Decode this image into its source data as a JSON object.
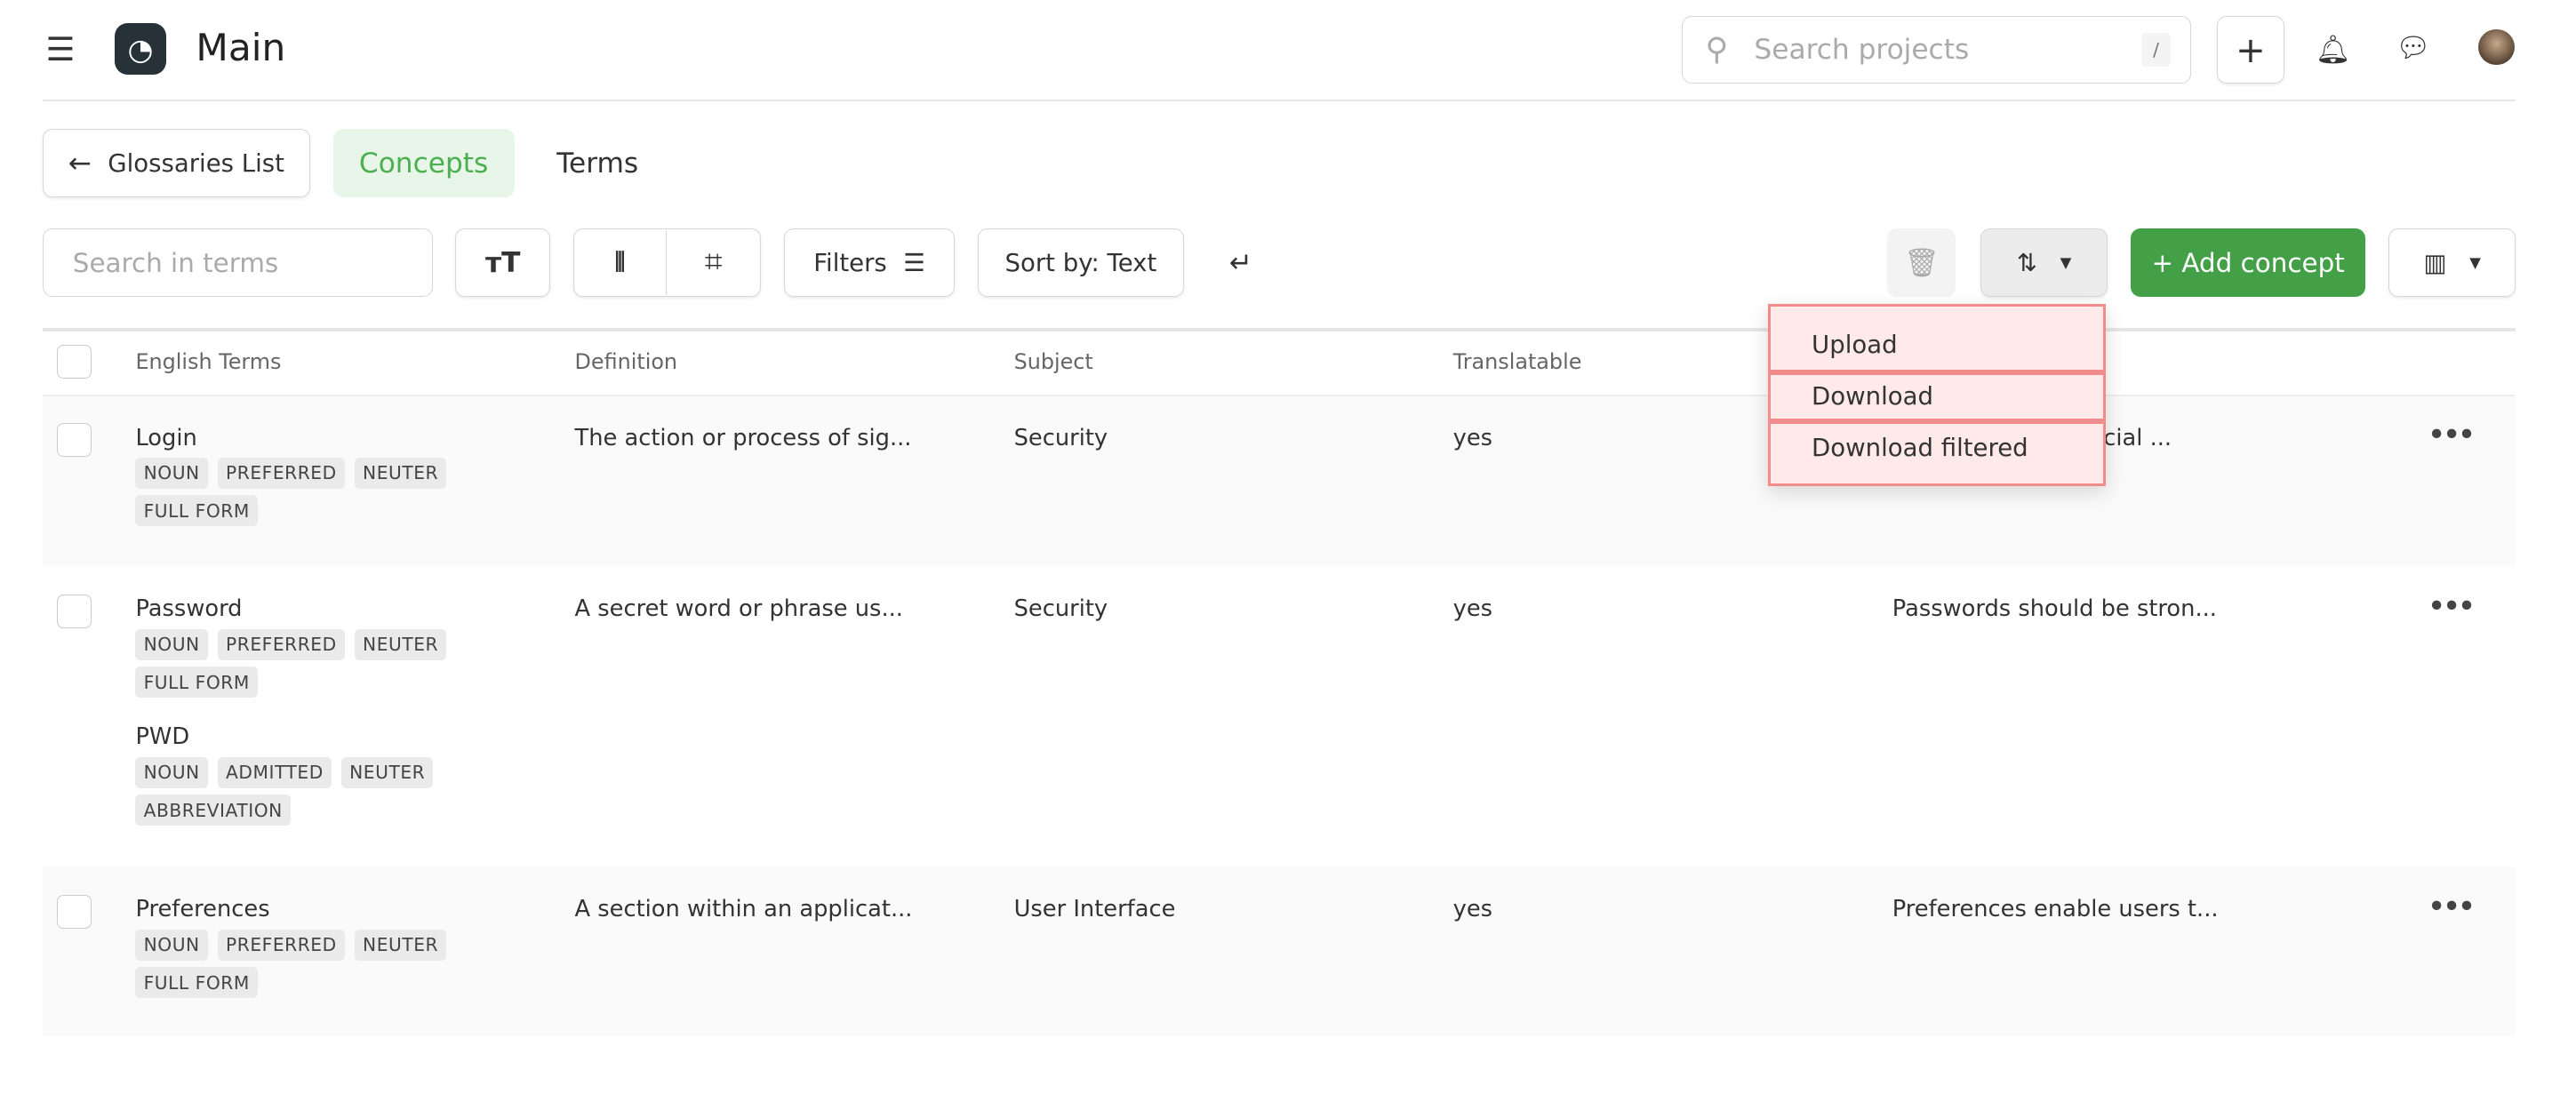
{
  "app": {
    "title": "Main",
    "search_placeholder": "Search projects",
    "search_shortcut": "/"
  },
  "nav": {
    "back_label": "Glossaries List",
    "tabs": [
      {
        "label": "Concepts",
        "active": true
      },
      {
        "label": "Terms",
        "active": false
      }
    ]
  },
  "toolbar": {
    "search_placeholder": "Search in terms",
    "filters_label": "Filters",
    "sort_label": "Sort by: Text",
    "add_label": "+ Add concept"
  },
  "colors": {
    "accent": "#43a047",
    "active_tab_bg": "#e8f5e9",
    "active_tab_text": "#4caf50",
    "menu_highlight": "#f28b8b"
  },
  "table": {
    "headers": [
      "English Terms",
      "Definition",
      "Subject",
      "Translatable",
      ""
    ],
    "rows": [
      {
        "terms": [
          {
            "text": "Login",
            "tags": [
              "NOUN",
              "PREFERRED",
              "NEUTER",
              "FULL FORM"
            ]
          }
        ],
        "definition": "The action or process of sig...",
        "subject": "Security",
        "translatable": "yes",
        "note": "crucial ..."
      },
      {
        "terms": [
          {
            "text": "Password",
            "tags": [
              "NOUN",
              "PREFERRED",
              "NEUTER",
              "FULL FORM"
            ]
          },
          {
            "text": "PWD",
            "tags": [
              "NOUN",
              "ADMITTED",
              "NEUTER",
              "ABBREVIATION"
            ]
          }
        ],
        "definition": "A secret word or phrase us...",
        "subject": "Security",
        "translatable": "yes",
        "note": "Passwords should be stron..."
      },
      {
        "terms": [
          {
            "text": "Preferences",
            "tags": [
              "NOUN",
              "PREFERRED",
              "NEUTER",
              "FULL FORM"
            ]
          }
        ],
        "definition": "A section within an applicat...",
        "subject": "User Interface",
        "translatable": "yes",
        "note": "Preferences enable users t..."
      }
    ]
  },
  "dropdown": {
    "items": [
      "Upload",
      "Download",
      "Download filtered"
    ]
  }
}
